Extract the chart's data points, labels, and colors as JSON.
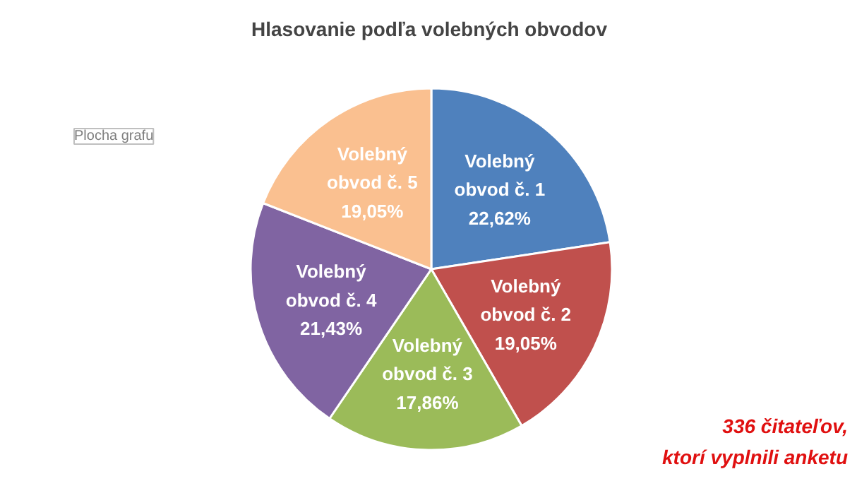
{
  "chart_data": {
    "type": "pie",
    "title": "Hlasovanie podľa volebných obvodov",
    "categories": [
      "Volebný obvod č. 1",
      "Volebný obvod č. 2",
      "Volebný obvod č. 3",
      "Volebný obvod č. 4",
      "Volebný obvod č. 5"
    ],
    "values": [
      22.62,
      19.05,
      17.86,
      21.43,
      19.05
    ],
    "value_labels": [
      "22,62%",
      "19,05%",
      "17,86%",
      "21,43%",
      "19,05%"
    ],
    "colors": [
      "#4f81bd",
      "#c0504d",
      "#9bbb59",
      "#8064a2",
      "#fac090"
    ],
    "annotations": [
      "Plocha grafu",
      "336 čitateľov,\nktorí vyplnili anketu"
    ]
  }
}
